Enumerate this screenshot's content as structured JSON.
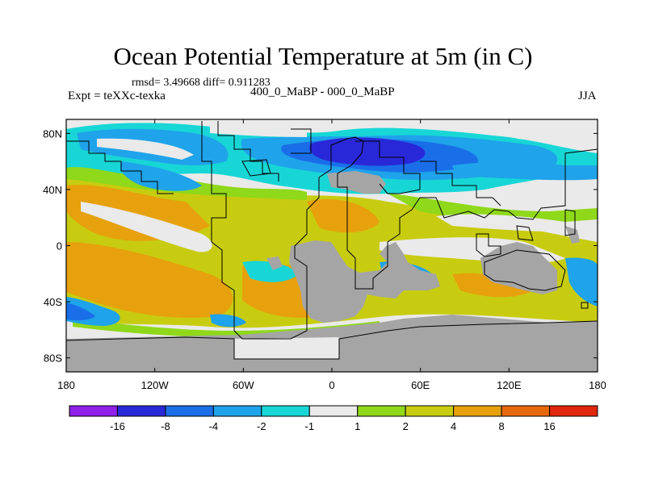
{
  "title": "Ocean Potential Temperature at 5m (in C)",
  "stats": "rmsd= 3.49668 diff= 0.911283",
  "experiment": "Expt = teXXc-texka",
  "period": "400_0_MaBP - 000_0_MaBP",
  "season": "JJA",
  "map": {
    "lon_ticks": [
      "180",
      "120W",
      "60W",
      "0",
      "60E",
      "120E",
      "180"
    ],
    "lat_ticks": [
      "80N",
      "40N",
      "0",
      "40S",
      "80S"
    ],
    "land_color": "#a5a5a5"
  },
  "colorbar": {
    "labels": [
      "-16",
      "-8",
      "-4",
      "-2",
      "-1",
      "1",
      "2",
      "4",
      "8",
      "16"
    ],
    "colors": [
      "#8f21e8",
      "#2828d8",
      "#1a6ee8",
      "#1fa3ea",
      "#18d6d6",
      "#eaeaea",
      "#8fd81a",
      "#c8cc10",
      "#e6a10c",
      "#e8680c",
      "#e0260c"
    ]
  }
}
